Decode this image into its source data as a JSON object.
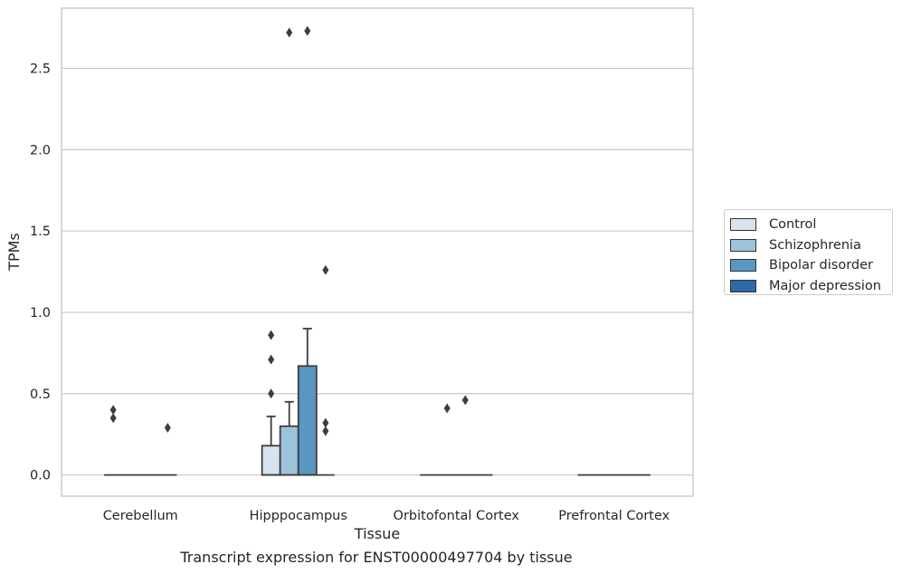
{
  "chart_data": {
    "type": "box",
    "xlabel": "Tissue",
    "ylabel": "TPMs",
    "ylim": [
      -0.13,
      2.87
    ],
    "yticks": [
      "0.0",
      "0.5",
      "1.0",
      "1.5",
      "2.0",
      "2.5"
    ],
    "ytick_values": [
      0,
      0.5,
      1.0,
      1.5,
      2.0,
      2.5
    ],
    "grid": "horizontal",
    "legend_position": "right",
    "categories": [
      "Cerebellum",
      "Hipppocampus",
      "Orbitofontal Cortex",
      "Prefrontal Cortex"
    ],
    "series": [
      {
        "name": "Control",
        "color": "#d6e3f0",
        "boxes": [
          {
            "q1": 0,
            "median": 0,
            "q3": 0,
            "whisker_low": 0,
            "whisker_high": 0,
            "outliers": [
              0.4,
              0.35
            ]
          },
          {
            "q1": 0,
            "median": 0,
            "q3": 0.18,
            "whisker_low": 0,
            "whisker_high": 0.36,
            "outliers": [
              0.86,
              0.71,
              0.5
            ]
          },
          {
            "q1": 0,
            "median": 0,
            "q3": 0,
            "whisker_low": 0,
            "whisker_high": 0,
            "outliers": []
          },
          {
            "q1": 0,
            "median": 0,
            "q3": 0,
            "whisker_low": 0,
            "whisker_high": 0,
            "outliers": []
          }
        ]
      },
      {
        "name": "Schizophrenia",
        "color": "#9dc3db",
        "boxes": [
          {
            "q1": 0,
            "median": 0,
            "q3": 0,
            "whisker_low": 0,
            "whisker_high": 0,
            "outliers": []
          },
          {
            "q1": 0,
            "median": 0,
            "q3": 0.3,
            "whisker_low": 0,
            "whisker_high": 0.45,
            "outliers": [
              2.72
            ]
          },
          {
            "q1": 0,
            "median": 0,
            "q3": 0,
            "whisker_low": 0,
            "whisker_high": 0,
            "outliers": [
              0.41
            ]
          },
          {
            "q1": 0,
            "median": 0,
            "q3": 0,
            "whisker_low": 0,
            "whisker_high": 0,
            "outliers": []
          }
        ]
      },
      {
        "name": "Bipolar disorder",
        "color": "#5997c2",
        "boxes": [
          {
            "q1": 0,
            "median": 0,
            "q3": 0,
            "whisker_low": 0,
            "whisker_high": 0,
            "outliers": []
          },
          {
            "q1": 0,
            "median": 0,
            "q3": 0.67,
            "whisker_low": 0,
            "whisker_high": 0.9,
            "outliers": [
              2.73
            ]
          },
          {
            "q1": 0,
            "median": 0,
            "q3": 0,
            "whisker_low": 0,
            "whisker_high": 0,
            "outliers": [
              0.46
            ]
          },
          {
            "q1": 0,
            "median": 0,
            "q3": 0,
            "whisker_low": 0,
            "whisker_high": 0,
            "outliers": []
          }
        ]
      },
      {
        "name": "Major depression",
        "color": "#2b6aa6",
        "boxes": [
          {
            "q1": 0,
            "median": 0,
            "q3": 0,
            "whisker_low": 0,
            "whisker_high": 0,
            "outliers": [
              0.29
            ]
          },
          {
            "q1": 0,
            "median": 0,
            "q3": 0,
            "whisker_low": 0,
            "whisker_high": 0,
            "outliers": [
              1.26,
              0.32,
              0.27
            ]
          },
          {
            "q1": 0,
            "median": 0,
            "q3": 0,
            "whisker_low": 0,
            "whisker_high": 0,
            "outliers": []
          },
          {
            "q1": 0,
            "median": 0,
            "q3": 0,
            "whisker_low": 0,
            "whisker_high": 0,
            "outliers": []
          }
        ]
      }
    ]
  },
  "caption": "Transcript expression for ENST00000497704 by tissue"
}
